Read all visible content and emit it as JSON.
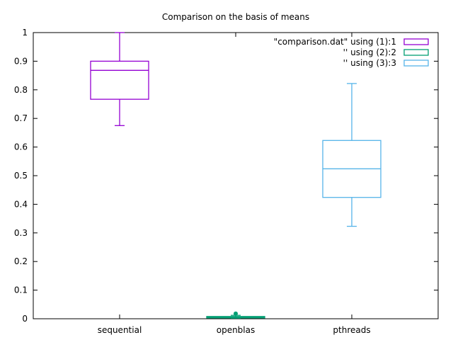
{
  "chart_data": {
    "type": "box",
    "title": "Comparison on the basis of means",
    "xlabel": "",
    "ylabel": "",
    "ylim": [
      0,
      1
    ],
    "yticks": [
      0,
      0.1,
      0.2,
      0.3,
      0.4,
      0.5,
      0.6,
      0.7,
      0.8,
      0.9,
      1
    ],
    "ytick_labels": [
      "0",
      "0.1",
      "0.2",
      "0.3",
      "0.4",
      "0.5",
      "0.6",
      "0.7",
      "0.8",
      "0.9",
      "1"
    ],
    "categories": [
      "sequential",
      "openblas",
      "pthreads"
    ],
    "legend_position": "top-right",
    "grid": false,
    "series": [
      {
        "name": "\"comparison.dat\" using (1):1",
        "color": "#9400d3",
        "whisker_low": 0.675,
        "q1": 0.767,
        "median": 0.868,
        "q3": 0.9,
        "whisker_high": 1.0,
        "outliers": []
      },
      {
        "name": "'' using (2):2",
        "color": "#009e73",
        "whisker_low": 0.002,
        "q1": 0.003,
        "median": 0.005,
        "q3": 0.008,
        "whisker_high": 0.012,
        "outliers": [
          0.018
        ]
      },
      {
        "name": "'' using (3):3",
        "color": "#56b4e9",
        "whisker_low": 0.323,
        "q1": 0.424,
        "median": 0.524,
        "q3": 0.623,
        "whisker_high": 0.822,
        "outliers": []
      }
    ]
  }
}
